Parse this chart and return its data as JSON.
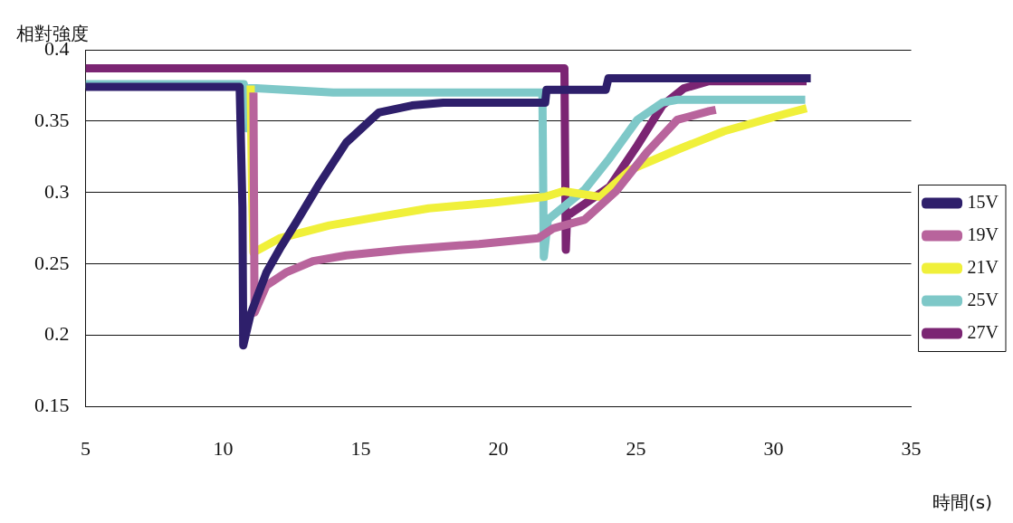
{
  "chart_data": {
    "type": "line",
    "xlabel": "時間(s)",
    "ylabel": "相對強度",
    "xlim": [
      5,
      35
    ],
    "xticks": [
      5,
      10,
      15,
      20,
      25,
      30,
      35
    ],
    "ylim": [
      0.15,
      0.4
    ],
    "yticks": [
      0.15,
      0.2,
      0.25,
      0.3,
      0.35,
      0.4
    ],
    "grid": "y",
    "legend": "right",
    "marker": "none",
    "line_style": "solid",
    "series": [
      {
        "name": "15V",
        "color": "#2e1f6b",
        "x": [
          5,
          10.6,
          10.7,
          10.73,
          11.0,
          11.57,
          12.1,
          12.65,
          13.49,
          14.47,
          15.65,
          16.86,
          18,
          21.7,
          21.75,
          23.9,
          24.0,
          31.35
        ],
        "values": [
          0.374,
          0.374,
          0.29,
          0.193,
          0.215,
          0.244,
          0.262,
          0.279,
          0.306,
          0.335,
          0.356,
          0.361,
          0.363,
          0.363,
          0.372,
          0.372,
          0.38,
          0.38
        ]
      },
      {
        "name": "19V",
        "color": "#b8649c",
        "x": [
          11.1,
          11.14,
          11.57,
          12.28,
          13.26,
          14.47,
          16.5,
          19.3,
          21.45,
          22.0,
          23.13,
          24.28,
          25.39,
          26.5,
          27.65,
          27.9
        ],
        "values": [
          0.37,
          0.216,
          0.235,
          0.244,
          0.252,
          0.256,
          0.26,
          0.264,
          0.268,
          0.275,
          0.281,
          0.301,
          0.328,
          0.351,
          0.357,
          0.358
        ]
      },
      {
        "name": "21V",
        "color": "#f0f03a",
        "x": [
          11.0,
          11.05,
          11.1,
          12.05,
          13.86,
          15.65,
          17.47,
          19.86,
          21.7,
          22.36,
          23.7,
          24.8,
          26.5,
          28.2,
          30.4,
          31.2
        ],
        "values": [
          0.375,
          0.3,
          0.258,
          0.268,
          0.277,
          0.283,
          0.289,
          0.293,
          0.297,
          0.301,
          0.297,
          0.316,
          0.33,
          0.343,
          0.355,
          0.359
        ]
      },
      {
        "name": "25V",
        "color": "#7ec8c8",
        "x": [
          5,
          10.75,
          10.85,
          10.95,
          11.2,
          14,
          21.6,
          21.65,
          21.8,
          23.13,
          24.04,
          25.05,
          25.96,
          26.5,
          31.15
        ],
        "values": [
          0.376,
          0.376,
          0.345,
          0.373,
          0.373,
          0.37,
          0.37,
          0.255,
          0.281,
          0.302,
          0.324,
          0.351,
          0.363,
          0.365,
          0.365
        ]
      },
      {
        "name": "27V",
        "color": "#7b2573",
        "x": [
          5,
          22.4,
          22.45,
          22.5,
          22.6,
          24.04,
          25.05,
          25.96,
          26.74,
          27.65,
          31.2
        ],
        "values": [
          0.387,
          0.387,
          0.26,
          0.285,
          0.285,
          0.304,
          0.333,
          0.361,
          0.373,
          0.378,
          0.378
        ]
      }
    ]
  }
}
